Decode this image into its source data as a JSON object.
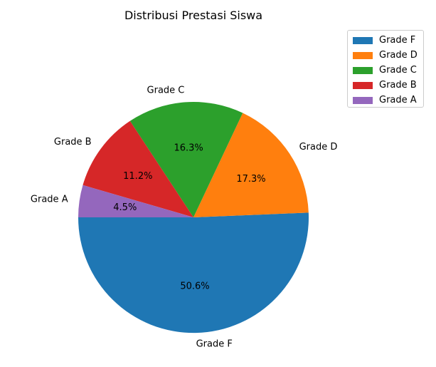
{
  "chart_data": {
    "type": "pie",
    "title": "Distribusi Prestasi Siswa",
    "slices": [
      {
        "label": "Grade F",
        "value": 50.6,
        "pct_label": "50.6%",
        "color": "#1f77b4"
      },
      {
        "label": "Grade D",
        "value": 17.3,
        "pct_label": "17.3%",
        "color": "#ff7f0e"
      },
      {
        "label": "Grade C",
        "value": 16.3,
        "pct_label": "16.3%",
        "color": "#2ca02c"
      },
      {
        "label": "Grade B",
        "value": 11.2,
        "pct_label": "11.2%",
        "color": "#d62728"
      },
      {
        "label": "Grade A",
        "value": 4.5,
        "pct_label": "4.5%",
        "color": "#9467bd"
      }
    ],
    "start_angle_deg": 180,
    "direction": "counterclockwise",
    "legend": {
      "placement": "top-right",
      "entries": [
        "Grade F",
        "Grade D",
        "Grade C",
        "Grade B",
        "Grade A"
      ]
    }
  }
}
